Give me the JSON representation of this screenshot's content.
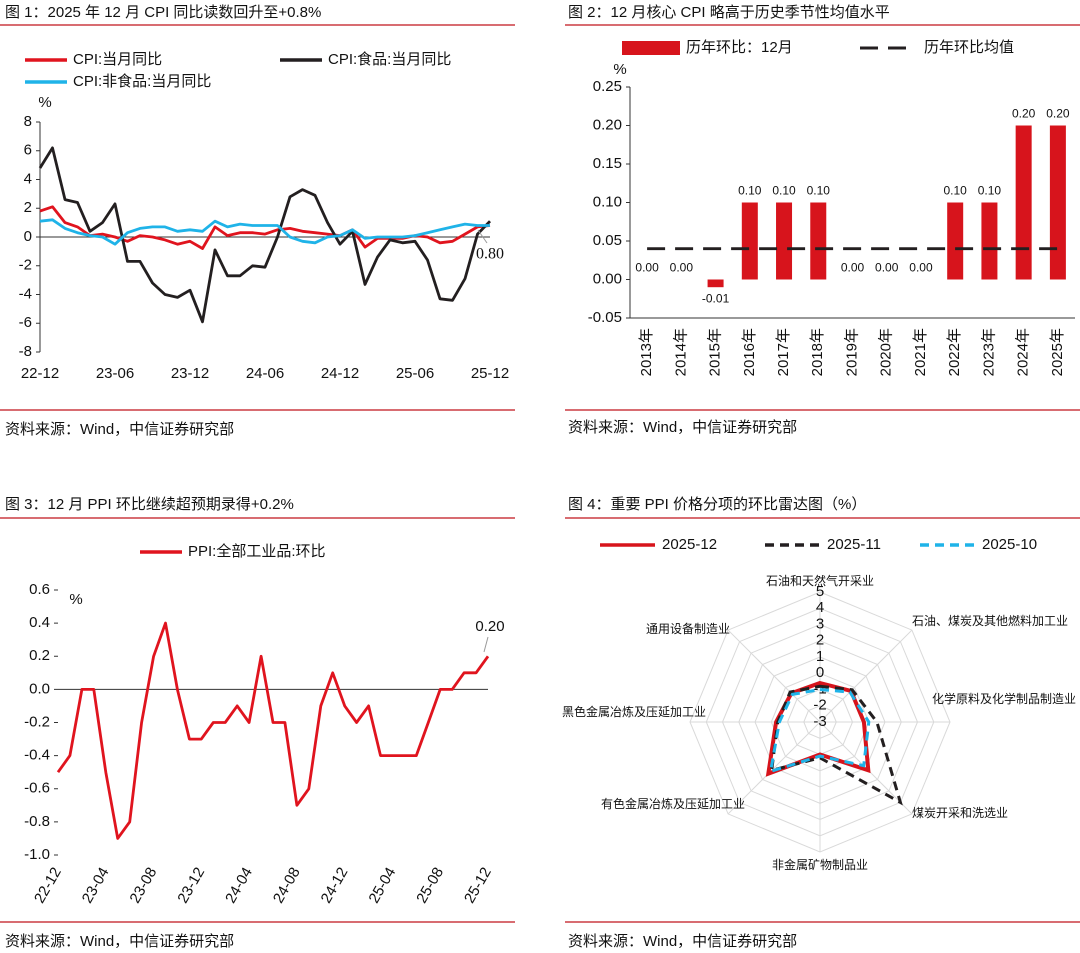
{
  "chart_data": [
    {
      "type": "line",
      "title": "图 1：2025 年 12 月 CPI 同比读数回升至+0.8%",
      "source": "资料来源：Wind，中信证券研究部",
      "y_label": "%",
      "annotation": "0.80",
      "categories": [
        "22-12",
        null,
        null,
        null,
        null,
        null,
        "23-06",
        null,
        null,
        null,
        null,
        null,
        "23-12",
        null,
        null,
        null,
        null,
        null,
        "24-06",
        null,
        null,
        null,
        null,
        null,
        "24-12",
        null,
        null,
        null,
        null,
        null,
        "25-06",
        null,
        null,
        null,
        null,
        null,
        "25-12"
      ],
      "ylim": [
        -8,
        8
      ],
      "yticks": [
        8,
        6,
        4,
        2,
        0,
        -2,
        -4,
        -6,
        -8
      ],
      "series": [
        {
          "name": "CPI:当月同比",
          "color": "#e0141e",
          "values": [
            1.8,
            2.1,
            1.0,
            0.7,
            0.1,
            0.2,
            0.0,
            -0.3,
            0.1,
            0.0,
            -0.2,
            -0.5,
            -0.3,
            -0.8,
            0.7,
            0.1,
            0.3,
            0.3,
            0.2,
            0.5,
            0.6,
            0.4,
            0.3,
            0.2,
            0.1,
            0.5,
            -0.7,
            -0.1,
            -0.1,
            -0.1,
            0.1,
            0.0,
            -0.4,
            -0.3,
            0.2,
            0.7,
            0.8
          ]
        },
        {
          "name": "CPI:食品:当月同比",
          "color": "#231f20",
          "values": [
            4.8,
            6.2,
            2.6,
            2.4,
            0.4,
            1.0,
            2.3,
            -1.7,
            -1.7,
            -3.2,
            -4.0,
            -4.2,
            -3.7,
            -5.9,
            -0.9,
            -2.7,
            -2.7,
            -2.0,
            -2.1,
            0.0,
            2.8,
            3.3,
            2.9,
            1.0,
            -0.5,
            0.4,
            -3.3,
            -1.4,
            -0.2,
            -0.4,
            -0.3,
            -1.6,
            -4.3,
            -4.4,
            -2.9,
            0.2,
            1.1
          ]
        },
        {
          "name": "CPI:非食品:当月同比",
          "color": "#1fb3e8",
          "values": [
            1.1,
            1.2,
            0.6,
            0.3,
            0.1,
            0.0,
            -0.5,
            0.3,
            0.6,
            0.7,
            0.7,
            0.4,
            0.5,
            0.4,
            1.1,
            0.7,
            0.9,
            0.8,
            0.8,
            0.8,
            0.0,
            -0.3,
            -0.4,
            0.0,
            0.1,
            0.5,
            -0.1,
            0.0,
            0.0,
            0.0,
            0.1,
            0.3,
            0.5,
            0.7,
            0.9,
            0.8,
            0.8
          ]
        }
      ]
    },
    {
      "type": "bar",
      "title": "图 2：12 月核心 CPI 略高于历史季节性均值水平",
      "source": "资料来源：Wind，中信证券研究部",
      "y_label": "%",
      "categories": [
        "2013年",
        "2014年",
        "2015年",
        "2016年",
        "2017年",
        "2018年",
        "2019年",
        "2020年",
        "2021年",
        "2022年",
        "2023年",
        "2024年",
        "2025年"
      ],
      "ylim": [
        -0.05,
        0.25
      ],
      "yticks": [
        0.25,
        {
          "value": 0.2,
          "label": "0.20"
        },
        0.15,
        {
          "value": 0.1,
          "label": "0.10"
        },
        0.05,
        {
          "value": 0,
          "label": "0.00"
        },
        -0.05
      ],
      "series": [
        {
          "name": "历年环比：12月",
          "type": "bar",
          "color": "#d7141c",
          "values": [
            0,
            0,
            -0.01,
            0.1,
            0.1,
            0.1,
            0,
            0,
            0,
            0.1,
            0.1,
            0.2,
            0.2
          ],
          "value_labels": [
            "0.00",
            "0.00",
            "-0.01",
            "0.10",
            "0.10",
            "0.10",
            "0.00",
            "0.00",
            "0.00",
            "0.10",
            "0.10",
            "0.20",
            "0.20"
          ]
        },
        {
          "name": "历年环比均值",
          "type": "line",
          "line_style": "dashed",
          "color": "#231f20",
          "values": [
            0.04,
            0.04,
            0.04,
            0.04,
            0.04,
            0.04,
            0.04,
            0.04,
            0.04,
            0.04,
            0.04,
            0.04,
            0.04
          ]
        }
      ]
    },
    {
      "type": "line",
      "title": "图 3：12 月 PPI 环比继续超预期录得+0.2%",
      "source": "资料来源：Wind，中信证券研究部",
      "y_label": "%",
      "annotation": "0.20",
      "categories": [
        "22-12",
        null,
        null,
        null,
        "23-04",
        null,
        null,
        null,
        "23-08",
        null,
        null,
        null,
        "23-12",
        null,
        null,
        null,
        "24-04",
        null,
        null,
        null,
        "24-08",
        null,
        null,
        null,
        "24-12",
        null,
        null,
        null,
        "25-04",
        null,
        null,
        null,
        "25-08",
        null,
        null,
        null,
        "25-12"
      ],
      "ylim": [
        -1.0,
        0.6
      ],
      "yticks": [
        0.6,
        0.4,
        0.2,
        {
          "value": 0,
          "label": "0.0"
        },
        -0.2,
        -0.4,
        -0.6,
        -0.8,
        {
          "value": -1.0,
          "label": "-1.0"
        }
      ],
      "series": [
        {
          "name": "PPI:全部工业品:环比",
          "color": "#e0141e",
          "values": [
            -0.5,
            -0.4,
            0.0,
            0.0,
            -0.5,
            -0.9,
            -0.8,
            -0.2,
            0.2,
            0.4,
            0.0,
            -0.3,
            -0.3,
            -0.2,
            -0.2,
            -0.1,
            -0.2,
            0.2,
            -0.2,
            -0.2,
            -0.7,
            -0.6,
            -0.1,
            0.1,
            -0.1,
            -0.2,
            -0.1,
            -0.4,
            -0.4,
            -0.4,
            -0.4,
            -0.2,
            0.0,
            0.0,
            0.1,
            0.1,
            0.2
          ]
        }
      ]
    },
    {
      "type": "radar",
      "title": "图 4：重要 PPI 价格分项的环比雷达图（%）",
      "source": "资料来源：Wind，中信证券研究部",
      "categories": [
        "石油和天然气开采业",
        "石油、煤炭及其他燃料加工业",
        "化学原料及化学制品制造业",
        "煤炭开采和洗选业",
        "非金属矿物制品业",
        "有色金属冶炼及压延加工业",
        "黑色金属冶炼及压延加工业",
        "通用设备制造业"
      ],
      "rlim": [
        -3,
        5
      ],
      "rticks": [
        5,
        4,
        3,
        2,
        1,
        0,
        -1,
        -2,
        -3
      ],
      "series": [
        {
          "name": "2025-12",
          "color": "#d7141c",
          "line_style": "solid",
          "values": [
            -0.6,
            -0.3,
            -0.3,
            1.2,
            -1.0,
            1.5,
            -0.3,
            -0.5
          ]
        },
        {
          "name": "2025-11",
          "color": "#231f20",
          "line_style": "dashed",
          "values": [
            -0.8,
            -0.2,
            0.5,
            4.0,
            -0.8,
            1.2,
            -0.4,
            -0.4
          ]
        },
        {
          "name": "2025-10",
          "color": "#1fb3e8",
          "line_style": "dashed",
          "values": [
            -1.0,
            -0.4,
            0.0,
            0.8,
            -0.9,
            1.3,
            -0.5,
            -0.6
          ]
        }
      ]
    }
  ]
}
